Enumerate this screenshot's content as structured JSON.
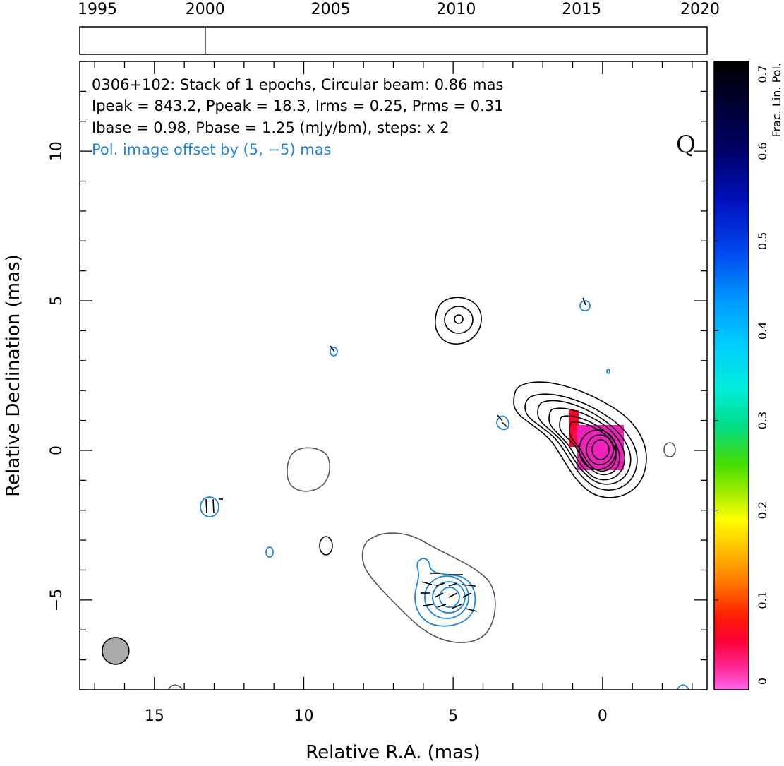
{
  "chart_data": {
    "type": "contour",
    "xlabel": "Relative R.A. (mas)",
    "ylabel": "Relative Declination (mas)",
    "xlim": [
      17.5,
      -3.5
    ],
    "ylim": [
      -8,
      13
    ],
    "x_ticks": [
      15,
      10,
      5,
      0
    ],
    "y_ticks": [
      10,
      5,
      0,
      -5
    ],
    "x_tick_labels": [
      "15",
      "10",
      "5",
      "0"
    ],
    "y_tick_labels": [
      "10",
      "5",
      "0",
      "−5"
    ],
    "info_lines": [
      "0306+102: Stack of 1 epochs, Circular beam: 0.86 mas",
      "Ipeak = 843.2, Ppeak = 18.3, Irms = 0.25, Prms = 0.31",
      "Ibase = 0.98, Pbase = 1.25 (mJy/bm), steps: x 2"
    ],
    "offset_note": "Pol. image offset by (5, −5) mas",
    "quality_label": "Q",
    "colors": {
      "intensity_contour": "#000000",
      "low_contour": "#555555",
      "polarization_contour": "#1f86e0",
      "beam_fill": "#aaaaaa"
    },
    "beam": {
      "x": 16.3,
      "y": -6.7,
      "diameter_mas": 0.86
    },
    "core": {
      "x": 0.0,
      "y": 0.0
    },
    "timeline": {
      "years": [
        1995,
        2000,
        2005,
        2010,
        2015,
        2020
      ],
      "year_labels": [
        "1995",
        "2000",
        "2005",
        "2010",
        "2015",
        "2020"
      ],
      "range": [
        1995,
        2020
      ],
      "epochs": [
        2000
      ]
    },
    "colorbar": {
      "title": "Frac. Lin. Pol.",
      "ticks": [
        0,
        0.1,
        0.2,
        0.3,
        0.4,
        0.5,
        0.6,
        0.7
      ],
      "tick_labels": [
        "0",
        "0.1",
        "0.2",
        "0.3",
        "0.4",
        "0.5",
        "0.6",
        "0.7"
      ],
      "range": [
        0,
        0.7
      ]
    }
  }
}
